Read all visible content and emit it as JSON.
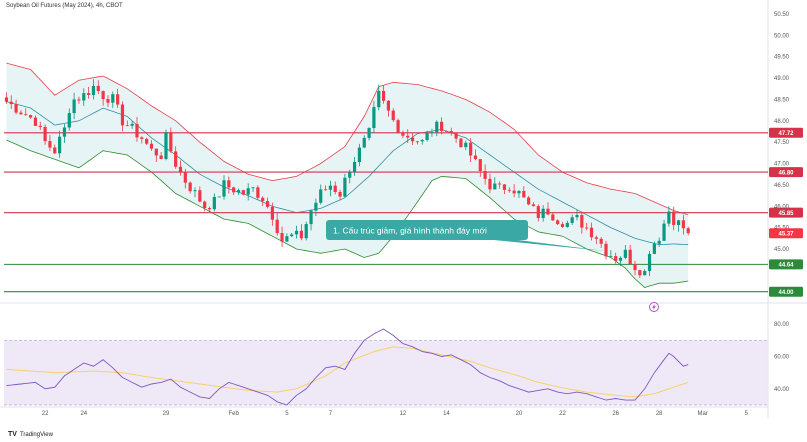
{
  "header": {
    "title": "Soybean Oil Futures (May 2024), 4h, CBOT"
  },
  "footer": {
    "brand": "TradingView",
    "brand_mark": "TV"
  },
  "icons": {
    "lightning": "lightning-bolt-icon"
  },
  "colors": {
    "up": "#089981",
    "down": "#f23645",
    "band_upper": "#e83e4a",
    "band_lower": "#2e8b2e",
    "band_basis": "#2f8fa8",
    "band_fill": "#e3f2f3",
    "resistance": "#d5324a",
    "support": "#2d8a3a",
    "rsi_line": "#7e57c2",
    "rsi_ma": "#f5d36a",
    "rsi_fill": "#ede7f6",
    "annotation_bg": "#3aa9a5"
  },
  "annotation": {
    "text": "1. Cấu trúc giảm, giá hình thành đáy mới"
  },
  "chart_data": [
    {
      "type": "candlestick",
      "title": "Soybean Oil Futures (May 2024), 4h, CBOT",
      "ylim": [
        43.9,
        50.5
      ],
      "y_ticks": [
        "50.50",
        "50.00",
        "49.50",
        "49.00",
        "48.50",
        "48.00",
        "47.50",
        "47.00",
        "46.50",
        "46.00",
        "45.50",
        "45.00"
      ],
      "y_tick_values": [
        50.5,
        50.0,
        49.5,
        49.0,
        48.5,
        48.0,
        47.5,
        47.0,
        46.5,
        46.0,
        45.5,
        45.0
      ],
      "x_labels": [
        "22",
        "24",
        "29",
        "Feb",
        "5",
        "7",
        "12",
        "14",
        "20",
        "22",
        "26",
        "28",
        "Mar",
        "5"
      ],
      "x_label_index": [
        8,
        16,
        33,
        47,
        58,
        67,
        82,
        91,
        106,
        115,
        126,
        135,
        144,
        153
      ],
      "n_bars": 158,
      "horizontal_levels": [
        {
          "value": 47.72,
          "label": "47.72",
          "kind": "resistance"
        },
        {
          "value": 46.8,
          "label": "46.80",
          "kind": "resistance"
        },
        {
          "value": 45.85,
          "label": "45.85",
          "kind": "resistance"
        },
        {
          "value": 44.64,
          "label": "44.64",
          "kind": "support"
        },
        {
          "value": 44.0,
          "label": "44.00",
          "kind": "support"
        }
      ],
      "last_price": {
        "value": 45.37,
        "label": "45.37"
      },
      "anchors": {
        "close": [
          [
            0,
            48.45
          ],
          [
            2,
            48.3
          ],
          [
            4,
            48.15
          ],
          [
            6,
            48.0
          ],
          [
            8,
            47.5
          ],
          [
            10,
            47.3
          ],
          [
            12,
            47.8
          ],
          [
            13,
            48.3
          ],
          [
            14,
            48.5
          ],
          [
            16,
            48.6
          ],
          [
            18,
            48.8
          ],
          [
            20,
            48.6
          ],
          [
            22,
            48.5
          ],
          [
            24,
            48.0
          ],
          [
            26,
            47.8
          ],
          [
            28,
            47.6
          ],
          [
            30,
            47.3
          ],
          [
            32,
            47.2
          ],
          [
            33,
            47.6
          ],
          [
            35,
            47.0
          ],
          [
            37,
            46.6
          ],
          [
            39,
            46.3
          ],
          [
            41,
            46.0
          ],
          [
            43,
            46.1
          ],
          [
            45,
            46.5
          ],
          [
            47,
            46.4
          ],
          [
            49,
            46.3
          ],
          [
            51,
            46.4
          ],
          [
            53,
            46.2
          ],
          [
            55,
            45.8
          ],
          [
            57,
            45.2
          ],
          [
            59,
            45.3
          ],
          [
            61,
            45.3
          ],
          [
            63,
            45.9
          ],
          [
            65,
            46.3
          ],
          [
            67,
            46.5
          ],
          [
            69,
            46.3
          ],
          [
            71,
            46.9
          ],
          [
            73,
            47.3
          ],
          [
            75,
            47.7
          ],
          [
            76,
            48.2
          ],
          [
            77,
            48.6
          ],
          [
            78,
            48.4
          ],
          [
            80,
            48.0
          ],
          [
            82,
            47.7
          ],
          [
            84,
            47.6
          ],
          [
            86,
            47.5
          ],
          [
            88,
            47.8
          ],
          [
            90,
            47.9
          ],
          [
            92,
            47.7
          ],
          [
            94,
            47.5
          ],
          [
            96,
            47.2
          ],
          [
            98,
            46.8
          ],
          [
            100,
            46.5
          ],
          [
            102,
            46.4
          ],
          [
            104,
            46.5
          ],
          [
            106,
            46.3
          ],
          [
            108,
            46.0
          ],
          [
            110,
            45.8
          ],
          [
            112,
            45.9
          ],
          [
            114,
            45.7
          ],
          [
            116,
            45.6
          ],
          [
            118,
            45.7
          ],
          [
            120,
            45.5
          ],
          [
            122,
            45.3
          ],
          [
            124,
            44.95
          ],
          [
            126,
            44.8
          ],
          [
            128,
            44.9
          ],
          [
            130,
            44.6
          ],
          [
            132,
            44.45
          ],
          [
            133,
            45.0
          ],
          [
            135,
            45.3
          ],
          [
            137,
            45.9
          ],
          [
            138,
            45.7
          ],
          [
            140,
            45.5
          ],
          [
            141,
            45.37
          ]
        ],
        "bb_upper": [
          [
            0,
            49.35
          ],
          [
            5,
            49.2
          ],
          [
            10,
            48.6
          ],
          [
            15,
            48.95
          ],
          [
            20,
            49.05
          ],
          [
            25,
            48.75
          ],
          [
            30,
            48.35
          ],
          [
            35,
            48.0
          ],
          [
            40,
            47.5
          ],
          [
            45,
            47.05
          ],
          [
            50,
            46.75
          ],
          [
            55,
            46.6
          ],
          [
            60,
            46.7
          ],
          [
            65,
            47.0
          ],
          [
            70,
            47.4
          ],
          [
            74,
            48.1
          ],
          [
            77,
            48.8
          ],
          [
            80,
            48.9
          ],
          [
            85,
            48.85
          ],
          [
            90,
            48.7
          ],
          [
            95,
            48.5
          ],
          [
            100,
            48.2
          ],
          [
            105,
            47.8
          ],
          [
            110,
            47.2
          ],
          [
            115,
            46.8
          ],
          [
            120,
            46.55
          ],
          [
            125,
            46.4
          ],
          [
            130,
            46.3
          ],
          [
            135,
            46.05
          ],
          [
            138,
            45.9
          ],
          [
            141,
            45.8
          ]
        ],
        "bb_basis": [
          [
            0,
            48.45
          ],
          [
            5,
            48.3
          ],
          [
            10,
            47.9
          ],
          [
            15,
            48.0
          ],
          [
            20,
            48.3
          ],
          [
            25,
            48.1
          ],
          [
            30,
            47.6
          ],
          [
            35,
            47.2
          ],
          [
            40,
            46.75
          ],
          [
            45,
            46.45
          ],
          [
            50,
            46.25
          ],
          [
            55,
            46.0
          ],
          [
            60,
            45.85
          ],
          [
            65,
            45.95
          ],
          [
            70,
            46.2
          ],
          [
            75,
            46.7
          ],
          [
            80,
            47.3
          ],
          [
            85,
            47.7
          ],
          [
            90,
            47.8
          ],
          [
            95,
            47.6
          ],
          [
            100,
            47.2
          ],
          [
            105,
            46.8
          ],
          [
            110,
            46.4
          ],
          [
            115,
            46.1
          ],
          [
            120,
            45.8
          ],
          [
            125,
            45.5
          ],
          [
            130,
            45.25
          ],
          [
            135,
            45.1
          ],
          [
            138,
            45.12
          ],
          [
            141,
            45.1
          ]
        ],
        "bb_lower": [
          [
            0,
            47.55
          ],
          [
            5,
            47.3
          ],
          [
            10,
            47.1
          ],
          [
            15,
            46.9
          ],
          [
            20,
            47.3
          ],
          [
            25,
            47.2
          ],
          [
            30,
            46.8
          ],
          [
            35,
            46.3
          ],
          [
            40,
            46.0
          ],
          [
            45,
            45.7
          ],
          [
            50,
            45.6
          ],
          [
            55,
            45.3
          ],
          [
            60,
            45.0
          ],
          [
            65,
            44.9
          ],
          [
            70,
            45.0
          ],
          [
            74,
            44.8
          ],
          [
            77,
            44.9
          ],
          [
            80,
            45.3
          ],
          [
            85,
            46.1
          ],
          [
            88,
            46.6
          ],
          [
            90,
            46.7
          ],
          [
            95,
            46.65
          ],
          [
            100,
            46.2
          ],
          [
            105,
            45.7
          ],
          [
            110,
            45.4
          ],
          [
            115,
            45.3
          ],
          [
            120,
            45.0
          ],
          [
            125,
            44.8
          ],
          [
            128,
            44.55
          ],
          [
            130,
            44.3
          ],
          [
            132,
            44.1
          ],
          [
            135,
            44.2
          ],
          [
            138,
            44.2
          ],
          [
            141,
            44.25
          ]
        ]
      }
    },
    {
      "type": "line",
      "title": "RSI",
      "ylim": [
        30,
        90
      ],
      "y_ticks": [
        "80.00",
        "60.00",
        "40.00"
      ],
      "y_tick_values": [
        80,
        60,
        40
      ],
      "band": [
        30,
        70
      ],
      "anchors": {
        "rsi": [
          [
            0,
            42
          ],
          [
            3,
            43
          ],
          [
            6,
            44
          ],
          [
            8,
            40
          ],
          [
            10,
            41
          ],
          [
            12,
            48
          ],
          [
            14,
            52
          ],
          [
            16,
            56
          ],
          [
            18,
            54
          ],
          [
            20,
            58
          ],
          [
            22,
            53
          ],
          [
            24,
            47
          ],
          [
            26,
            44
          ],
          [
            28,
            41
          ],
          [
            30,
            43
          ],
          [
            32,
            44
          ],
          [
            34,
            46
          ],
          [
            36,
            41
          ],
          [
            38,
            38
          ],
          [
            40,
            35
          ],
          [
            42,
            34
          ],
          [
            44,
            40
          ],
          [
            46,
            44
          ],
          [
            48,
            42
          ],
          [
            50,
            40
          ],
          [
            52,
            38
          ],
          [
            54,
            36
          ],
          [
            56,
            32
          ],
          [
            58,
            30
          ],
          [
            60,
            36
          ],
          [
            62,
            40
          ],
          [
            64,
            47
          ],
          [
            66,
            53
          ],
          [
            68,
            54
          ],
          [
            70,
            52
          ],
          [
            72,
            62
          ],
          [
            74,
            70
          ],
          [
            76,
            74
          ],
          [
            78,
            77
          ],
          [
            80,
            73
          ],
          [
            82,
            68
          ],
          [
            84,
            66
          ],
          [
            86,
            63
          ],
          [
            88,
            62
          ],
          [
            90,
            60
          ],
          [
            92,
            61
          ],
          [
            94,
            58
          ],
          [
            96,
            55
          ],
          [
            98,
            50
          ],
          [
            100,
            47
          ],
          [
            102,
            45
          ],
          [
            104,
            42
          ],
          [
            106,
            40
          ],
          [
            108,
            38
          ],
          [
            110,
            39
          ],
          [
            112,
            40
          ],
          [
            114,
            38
          ],
          [
            116,
            37
          ],
          [
            118,
            38
          ],
          [
            120,
            37
          ],
          [
            122,
            35
          ],
          [
            124,
            33
          ],
          [
            126,
            34
          ],
          [
            128,
            33
          ],
          [
            130,
            33
          ],
          [
            132,
            40
          ],
          [
            134,
            50
          ],
          [
            136,
            58
          ],
          [
            137,
            62
          ],
          [
            138,
            60
          ],
          [
            140,
            54
          ],
          [
            141,
            55
          ]
        ],
        "rsi_ma": [
          [
            0,
            52
          ],
          [
            10,
            50
          ],
          [
            18,
            51
          ],
          [
            24,
            50
          ],
          [
            30,
            47
          ],
          [
            40,
            43
          ],
          [
            50,
            39
          ],
          [
            56,
            38
          ],
          [
            60,
            40
          ],
          [
            66,
            48
          ],
          [
            70,
            56
          ],
          [
            76,
            63
          ],
          [
            80,
            66
          ],
          [
            84,
            65
          ],
          [
            90,
            61
          ],
          [
            96,
            57
          ],
          [
            100,
            53
          ],
          [
            106,
            48
          ],
          [
            110,
            44
          ],
          [
            116,
            40
          ],
          [
            120,
            38
          ],
          [
            126,
            36
          ],
          [
            130,
            35
          ],
          [
            134,
            37
          ],
          [
            138,
            41
          ],
          [
            141,
            44
          ]
        ]
      }
    }
  ]
}
